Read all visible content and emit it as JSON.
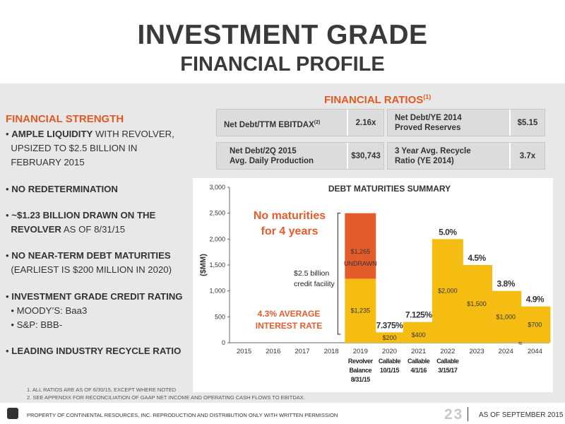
{
  "title": {
    "line1": "INVESTMENT GRADE",
    "line2": "FINANCIAL PROFILE"
  },
  "strength": {
    "heading": "FINANCIAL STRENGTH",
    "b1_bold": "AMPLE LIQUIDITY",
    "b1_rest": " WITH REVOLVER,",
    "b1_l2": "UPSIZED TO $2.5 BILLION IN",
    "b1_l3": "FEBRUARY 2015",
    "b2": "NO REDETERMINATION",
    "b3_l1": "~$1.23 BILLION DRAWN ON THE",
    "b3_l2_bold": "REVOLVER",
    "b3_l2_rest": " AS OF 8/31/15",
    "b4_l1": "NO NEAR-TERM DEBT MATURITIES",
    "b4_l2": "(EARLIEST IS $200 MILLION IN 2020)",
    "b5": "INVESTMENT GRADE CREDIT RATING",
    "b5_s1": "MOODY’S: Baa3",
    "b5_s2": "S&P: BBB-",
    "b6": "LEADING INDUSTRY RECYCLE RATIO"
  },
  "ratios": {
    "heading": "FINANCIAL RATIOS",
    "heading_sup": "(1)",
    "r1_label": "Net Debt/TTM EBITDAX",
    "r1_sup": "(2)",
    "r1_val": "2.16x",
    "r2_label_l1": "Net Debt/YE 2014",
    "r2_label_l2": "Proved Reserves",
    "r2_val": "$5.15",
    "r3_label_l1": "Net Debt/2Q 2015",
    "r3_label_l2": "Avg. Daily Production",
    "r3_val": "$30,743",
    "r4_label_l1": "3 Year Avg. Recycle",
    "r4_label_l2": "Ratio (YE 2014)",
    "r4_val": "3.7x"
  },
  "chart_data": {
    "type": "bar",
    "title": "DEBT MATURITIES SUMMARY",
    "ylabel": "($MM)",
    "ylim": [
      0,
      3000
    ],
    "yticks": [
      "0",
      "500",
      "1,000",
      "1,500",
      "2,000",
      "2,500",
      "3,000"
    ],
    "categories": [
      "2015",
      "2016",
      "2017",
      "2018",
      "2019",
      "2020",
      "2021",
      "2022",
      "2023",
      "2024",
      "2044"
    ],
    "series": [
      {
        "name": "",
        "values": [
          0,
          0,
          0,
          0,
          1235,
          200,
          400,
          2000,
          1500,
          1000,
          700
        ],
        "color": "#f5bc12"
      },
      {
        "name": "UNDRAWN",
        "values": [
          0,
          0,
          0,
          0,
          1265,
          0,
          0,
          0,
          0,
          0,
          0
        ],
        "color": "#e45c2c"
      }
    ],
    "bar_labels": [
      "",
      "",
      "",
      "",
      "$1,235",
      "$200",
      "$400",
      "$2,000",
      "$1,500",
      "$1,000",
      "$700"
    ],
    "undrawn_label": "$1,265",
    "undrawn_text": "UNDRAWN",
    "rate_labels": [
      "",
      "",
      "",
      "",
      "",
      "7.375%",
      "7.125%",
      "5.0%",
      "4.5%",
      "3.8%",
      "4.9%"
    ],
    "sub_labels": [
      {
        "index": 4,
        "lines": [
          "Revolver",
          "Balance",
          "8/31/15"
        ]
      },
      {
        "index": 5,
        "lines": [
          "Callable",
          "10/1/15"
        ]
      },
      {
        "index": 6,
        "lines": [
          "Callable",
          "4/1/16"
        ]
      },
      {
        "index": 7,
        "lines": [
          "Callable",
          "3/15/17"
        ]
      }
    ],
    "annotations": {
      "no_maturities_l1": "No maturities",
      "no_maturities_l2": "for 4 years",
      "credit_l1": "$2.5 billion",
      "credit_l2": "credit facility",
      "avg_rate_l1": "4.3% AVERAGE",
      "avg_rate_l2": "INTEREST RATE"
    },
    "grid": false
  },
  "footnotes": {
    "f1": "1. ALL RATIOS ARE AS OF 6/30/15, EXCEPT WHERE NOTED",
    "f2": "2. SEE APPENDIX FOR RECONCILIATION OF GAAP NET INCOME AND OPERATING CASH FLOWS TO EBITDAX."
  },
  "footer": {
    "property": "PROPERTY OF CONTINENTAL RESOURCES, INC. REPRODUCTION AND DISTRIBUTION ONLY WITH WRITTEN PERMISSION",
    "page": "23",
    "asof": "AS OF SEPTEMBER 2015"
  }
}
